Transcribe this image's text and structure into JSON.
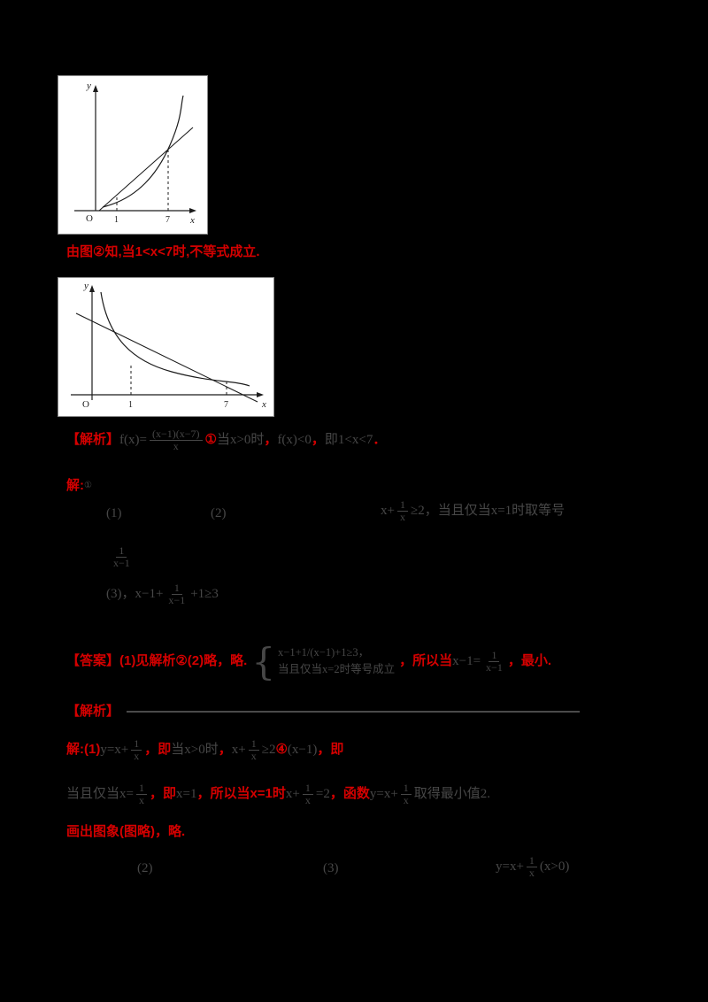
{
  "page": {
    "background": "#000000",
    "paper_color": "#ffffff",
    "accent_red": "#d40000",
    "text_dark": "#474747"
  },
  "figure1": {
    "y_label": "y",
    "x_label": "x",
    "origin_label": "O",
    "tick_1": "1",
    "tick_2": "7"
  },
  "figure2": {
    "y_label": "y",
    "x_label": "x",
    "origin_label": "O",
    "tick_1": "1",
    "tick_2": "7"
  },
  "lines": {
    "l1": {
      "seg": [
        {
          "t": "由图",
          "c": "red",
          "b": true
        },
        {
          "t": "②",
          "c": "red",
          "b": true
        },
        {
          "t": "知,当1<x<7时,不等式成立.",
          "c": "red",
          "b": true
        }
      ]
    },
    "l2": {
      "seg": [
        {
          "t": "【解析】",
          "c": "red",
          "b": true
        },
        {
          "t": "f(x)=",
          "c": "dark"
        },
        {
          "frac": {
            "n": "(x−1)(x−7)",
            "d": "x"
          },
          "c": "dark"
        },
        {
          "t": "①",
          "c": "red",
          "b": true
        },
        {
          "t": " 当x>0时",
          "c": "dark"
        },
        {
          "t": "，",
          "c": "red",
          "b": true
        },
        {
          "t": "f(x)<0",
          "c": "dark"
        },
        {
          "t": "，",
          "c": "red",
          "b": true
        },
        {
          "t": "即1<x<7",
          "c": "dark"
        },
        {
          "t": "．",
          "c": "red",
          "b": true
        }
      ]
    },
    "l3": {
      "seg": [
        {
          "t": "解:",
          "c": "red",
          "b": true
        },
        {
          "t": "①",
          "c": "dark",
          "sz": 10
        }
      ]
    },
    "l4a": {
      "seg": [
        {
          "t": "(1)",
          "c": "dark"
        }
      ]
    },
    "l4b": {
      "seg": [
        {
          "t": "(2)",
          "c": "dark"
        }
      ]
    },
    "l4c": {
      "seg": [
        {
          "t": "x+",
          "c": "dark"
        },
        {
          "frac": {
            "n": "1",
            "d": "x"
          },
          "c": "dark"
        },
        {
          "t": "≥2",
          "c": "dark"
        },
        {
          "t": "，当且仅当x=1时取等号",
          "c": "dark"
        }
      ]
    },
    "l5": {
      "seg": [
        {
          "frac": {
            "n": "1",
            "d": "x−1"
          },
          "c": "dark"
        }
      ]
    },
    "l6": {
      "seg": [
        {
          "t": "(3)，",
          "c": "dark"
        },
        {
          "t": "x−1+",
          "c": "dark"
        },
        {
          "frac": {
            "n": "1",
            "d": "x−1"
          },
          "c": "dark"
        },
        {
          "t": "+1≥3",
          "c": "dark"
        }
      ]
    },
    "l7": {
      "seg": [
        {
          "t": "【答案】(1)见解析",
          "c": "red",
          "b": true
        },
        {
          "t": "②",
          "c": "red",
          "b": true
        },
        {
          "t": "(2)略，略.",
          "c": "red",
          "b": true
        },
        {
          "cases": [
            "x−1+1/(x−1)+1≥3，",
            "当且仅当x=2时等号成立"
          ],
          "c": "dark"
        },
        {
          "t": "，所以当",
          "c": "red",
          "b": true
        },
        {
          "t": "x−1=",
          "c": "dark"
        },
        {
          "frac": {
            "n": "1",
            "d": "x−1"
          },
          "c": "dark"
        },
        {
          "t": "，最小.",
          "c": "red",
          "b": true
        }
      ]
    },
    "l8": {
      "seg": [
        {
          "t": "【解析】",
          "c": "red",
          "b": true
        },
        {
          "rule": 512,
          "c": "dark"
        }
      ]
    },
    "l9": {
      "seg": [
        {
          "t": "解:(1)",
          "c": "red",
          "b": true
        },
        {
          "t": "y=x+",
          "c": "dark"
        },
        {
          "frac": {
            "n": "1",
            "d": "x"
          },
          "c": "dark"
        },
        {
          "t": "，即",
          "c": "red",
          "b": true
        },
        {
          "t": "当x>0时",
          "c": "dark"
        },
        {
          "t": "，",
          "c": "red",
          "b": true
        },
        {
          "t": "x+",
          "c": "dark"
        },
        {
          "frac": {
            "n": "1",
            "d": "x"
          },
          "c": "dark"
        },
        {
          "t": "≥2",
          "c": "dark"
        },
        {
          "t": "④",
          "c": "red",
          "b": true
        },
        {
          "t": "(x−1)",
          "c": "dark"
        },
        {
          "t": "，即",
          "c": "red",
          "b": true
        }
      ]
    },
    "l10": {
      "seg": [
        {
          "t": "当且仅当x=",
          "c": "dark"
        },
        {
          "frac": {
            "n": "1",
            "d": "x"
          },
          "c": "dark"
        },
        {
          "t": "，即",
          "c": "red",
          "b": true
        },
        {
          "t": "x=1",
          "c": "dark"
        },
        {
          "t": "，所以当x=1时",
          "c": "red",
          "b": true
        },
        {
          "t": "x+",
          "c": "dark"
        },
        {
          "frac": {
            "n": "1",
            "d": "x"
          },
          "c": "dark"
        },
        {
          "t": "=2",
          "c": "dark"
        },
        {
          "t": "，函数",
          "c": "red",
          "b": true
        },
        {
          "t": "y=x+",
          "c": "dark"
        },
        {
          "frac": {
            "n": "1",
            "d": "x"
          },
          "c": "dark"
        },
        {
          "t": "取得最小值2.",
          "c": "dark"
        }
      ]
    },
    "l11": {
      "seg": [
        {
          "t": "画出图象(图略)，略.",
          "c": "red",
          "b": true
        }
      ]
    },
    "l12a": {
      "seg": [
        {
          "t": "(2)",
          "c": "dark"
        }
      ]
    },
    "l12b": {
      "seg": [
        {
          "t": "(3)",
          "c": "dark"
        }
      ]
    },
    "l12c": {
      "seg": [
        {
          "t": "y=x+",
          "c": "dark"
        },
        {
          "frac": {
            "n": "1",
            "d": "x"
          },
          "c": "dark"
        },
        {
          "t": "(x>0)",
          "c": "dark"
        }
      ]
    }
  }
}
